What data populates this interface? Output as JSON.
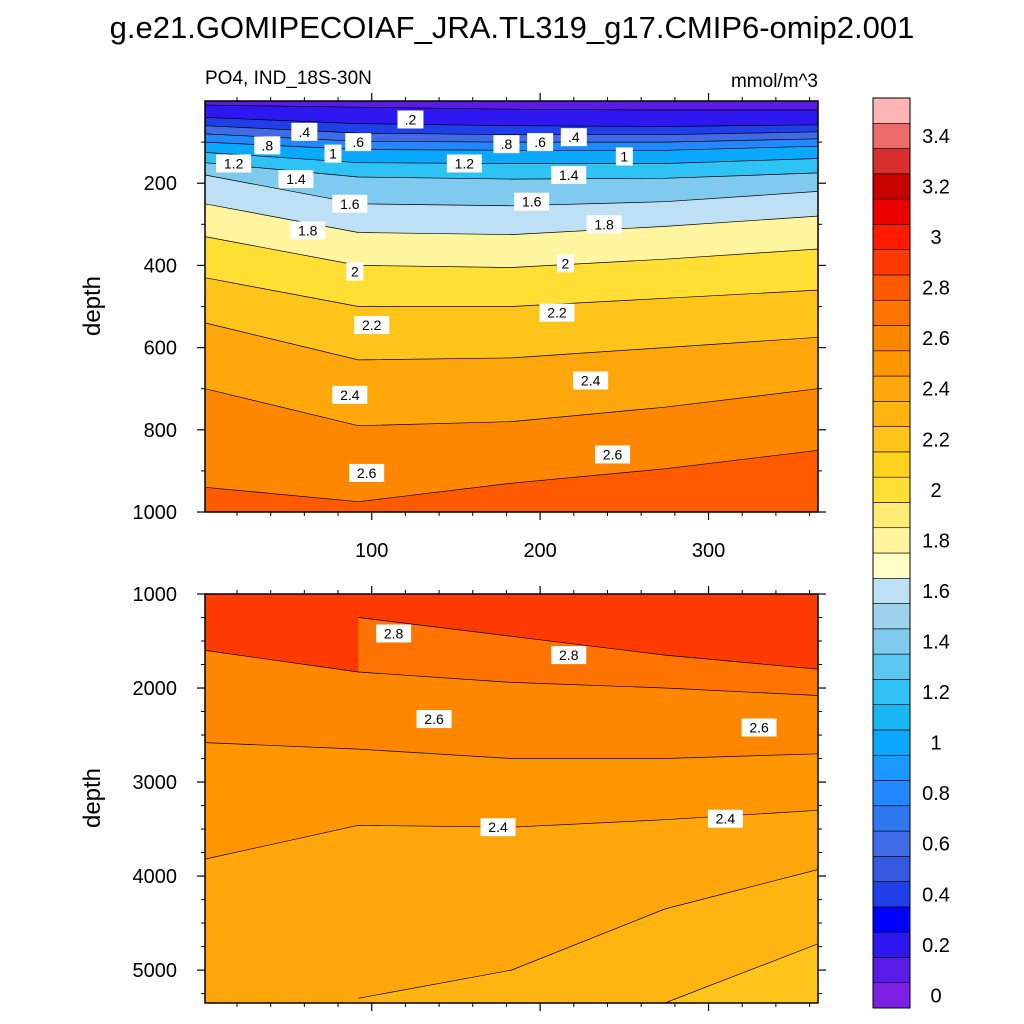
{
  "figure": {
    "title": "g.e21.GOMIPECOIAF_JRA.TL319_g17.CMIP6-omip2.001",
    "subtitle_left": "PO4, IND_18S-30N",
    "subtitle_right": "mmol/m^3"
  },
  "colorbar": {
    "levels": [
      0,
      0.1,
      0.2,
      0.3,
      0.4,
      0.5,
      0.6,
      0.7,
      0.8,
      0.9,
      1.0,
      1.1,
      1.2,
      1.3,
      1.4,
      1.5,
      1.6,
      1.7,
      1.8,
      1.9,
      2.0,
      2.1,
      2.2,
      2.3,
      2.4,
      2.5,
      2.6,
      2.7,
      2.8,
      2.9,
      3.0,
      3.1,
      3.2,
      3.3,
      3.4,
      3.5
    ],
    "colors": [
      "#7e1fe6",
      "#5a1ae8",
      "#2e17f0",
      "#0000ff",
      "#1f3fe8",
      "#3558e0",
      "#3f6ce6",
      "#2f79f0",
      "#2288ff",
      "#1a98ff",
      "#0aa8ff",
      "#19b6f6",
      "#2fc2f4",
      "#5cc8f2",
      "#7fcaee",
      "#9ed2ec",
      "#bde0f4",
      "#ffffc6",
      "#fff59e",
      "#ffeb72",
      "#ffdf33",
      "#ffd21e",
      "#ffc41a",
      "#ffb412",
      "#ffa60a",
      "#ff9600",
      "#ff8700",
      "#ff7400",
      "#ff5a00",
      "#ff3a00",
      "#ff1a00",
      "#ec0000",
      "#c90000",
      "#db2f2f",
      "#ec6b6b",
      "#ffb5b5"
    ],
    "tick_labels": [
      "0",
      "0.2",
      "0.4",
      "0.6",
      "0.8",
      "1",
      "1.2",
      "1.4",
      "1.6",
      "1.8",
      "2",
      "2.2",
      "2.4",
      "2.6",
      "2.8",
      "3",
      "3.2",
      "3.4"
    ]
  },
  "chart_data": [
    {
      "type": "contour",
      "panel": "upper",
      "xlim": [
        1,
        365
      ],
      "ylim": [
        1000,
        0
      ],
      "ylabel": "depth",
      "xticks": [
        "100",
        "200",
        "300"
      ],
      "yticks": [
        "200",
        "400",
        "600",
        "800",
        "1000"
      ],
      "contour_interval": 0.1,
      "contour_lines": [
        {
          "level": 0.2,
          "depths": [
            10,
            15,
            20,
            22,
            22
          ]
        },
        {
          "level": 0.4,
          "depths": [
            40,
            55,
            60,
            62,
            58
          ]
        },
        {
          "level": 0.6,
          "depths": [
            60,
            78,
            82,
            82,
            75
          ]
        },
        {
          "level": 0.8,
          "depths": [
            80,
            98,
            100,
            100,
            92
          ]
        },
        {
          "level": 1.0,
          "depths": [
            100,
            118,
            120,
            120,
            110
          ]
        },
        {
          "level": 1.2,
          "depths": [
            125,
            150,
            152,
            152,
            140
          ]
        },
        {
          "level": 1.4,
          "depths": [
            150,
            185,
            190,
            188,
            175
          ]
        },
        {
          "level": 1.6,
          "depths": [
            180,
            250,
            255,
            245,
            220
          ]
        },
        {
          "level": 1.8,
          "depths": [
            250,
            320,
            325,
            305,
            280
          ]
        },
        {
          "level": 2.0,
          "depths": [
            330,
            400,
            405,
            385,
            360
          ]
        },
        {
          "level": 2.2,
          "depths": [
            430,
            500,
            500,
            480,
            460
          ]
        },
        {
          "level": 2.4,
          "depths": [
            540,
            630,
            625,
            600,
            575
          ]
        },
        {
          "level": 2.6,
          "depths": [
            700,
            790,
            780,
            745,
            700
          ]
        },
        {
          "level": 2.8,
          "depths": [
            940,
            975,
            930,
            895,
            850
          ]
        }
      ],
      "contour_labels": [
        {
          "text": ".2",
          "x": 123,
          "y": 45
        },
        {
          "text": ".4",
          "x": 60,
          "y": 75
        },
        {
          "text": ".8",
          "x": 38,
          "y": 108
        },
        {
          "text": ".6",
          "x": 92,
          "y": 100
        },
        {
          "text": "1",
          "x": 77,
          "y": 128
        },
        {
          "text": "1.2",
          "x": 18,
          "y": 152
        },
        {
          "text": "1.4",
          "x": 55,
          "y": 190
        },
        {
          "text": "1.2",
          "x": 155,
          "y": 152
        },
        {
          "text": ".8",
          "x": 180,
          "y": 105
        },
        {
          "text": ".6",
          "x": 200,
          "y": 100
        },
        {
          "text": ".4",
          "x": 220,
          "y": 88
        },
        {
          "text": "1",
          "x": 250,
          "y": 135
        },
        {
          "text": "1.4",
          "x": 217,
          "y": 180
        },
        {
          "text": "1.6",
          "x": 87,
          "y": 250
        },
        {
          "text": "1.6",
          "x": 195,
          "y": 245
        },
        {
          "text": "1.8",
          "x": 238,
          "y": 300
        },
        {
          "text": "1.8",
          "x": 62,
          "y": 315
        },
        {
          "text": "2",
          "x": 90,
          "y": 415
        },
        {
          "text": "2",
          "x": 215,
          "y": 395
        },
        {
          "text": "2.2",
          "x": 100,
          "y": 545
        },
        {
          "text": "2.2",
          "x": 210,
          "y": 515
        },
        {
          "text": "2.4",
          "x": 87,
          "y": 715
        },
        {
          "text": "2.4",
          "x": 230,
          "y": 680
        },
        {
          "text": "2.6",
          "x": 97,
          "y": 905
        },
        {
          "text": "2.6",
          "x": 243,
          "y": 860
        }
      ]
    },
    {
      "type": "contour",
      "panel": "lower",
      "xlim": [
        1,
        365
      ],
      "ylim": [
        5350,
        1000
      ],
      "ylabel": "depth",
      "yticks": [
        "1000",
        "2000",
        "3000",
        "4000",
        "5000"
      ],
      "contour_interval": 0.1,
      "contour_lines": [
        {
          "level": 2.8,
          "depths": [
            null,
            1250,
            1450,
            1650,
            1800
          ]
        },
        {
          "level": 2.7,
          "depths": [
            1600,
            1830,
            1940,
            2000,
            2080
          ]
        },
        {
          "level": 2.6,
          "depths": [
            2580,
            2650,
            2750,
            2750,
            2700
          ]
        },
        {
          "level": 2.5,
          "depths": [
            3820,
            3460,
            3480,
            3400,
            3300
          ]
        },
        {
          "level": 2.4,
          "depths": [
            null,
            5300,
            5000,
            4350,
            3930
          ]
        },
        {
          "level": 2.3,
          "depths": [
            null,
            null,
            null,
            5350,
            4720
          ]
        }
      ],
      "contour_labels": [
        {
          "text": "2.8",
          "x": 113,
          "y": 1420
        },
        {
          "text": "2.8",
          "x": 217,
          "y": 1650
        },
        {
          "text": "2.6",
          "x": 137,
          "y": 2330
        },
        {
          "text": "2.6",
          "x": 330,
          "y": 2420
        },
        {
          "text": "2.4",
          "x": 175,
          "y": 3480
        },
        {
          "text": "2.4",
          "x": 310,
          "y": 3390
        }
      ]
    }
  ]
}
